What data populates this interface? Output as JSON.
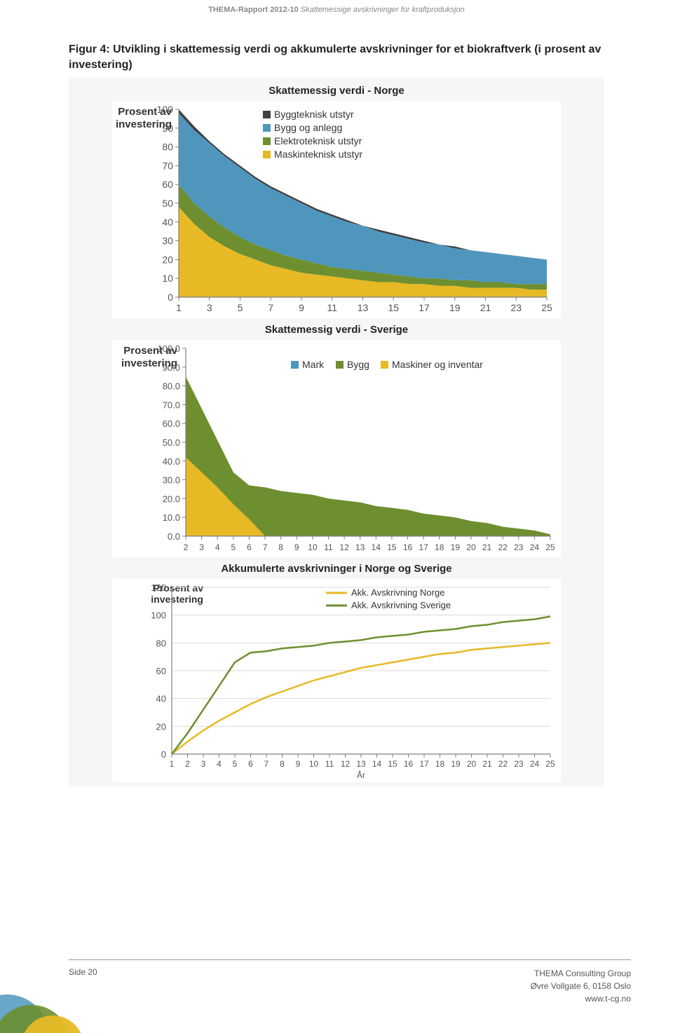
{
  "header": {
    "prefix": "THEMA-Rapport 2012-10",
    "suffix": "Skattemessige avskrivninger for kraftproduksjon"
  },
  "figTitle": "Figur 4: Utvikling i skattemessig verdi og akkumulerte avskrivninger for et biokraftverk (i prosent av investering)",
  "chart1": {
    "title": "Skattemessig verdi - Norge",
    "type": "area",
    "ylabel": "Prosent av investering",
    "ylabel_fontsize": 15,
    "ylim": [
      0,
      100
    ],
    "ytick_step": 10,
    "xticks": [
      1,
      3,
      5,
      7,
      9,
      11,
      13,
      15,
      17,
      19,
      21,
      23,
      25
    ],
    "tick_fontsize": 14,
    "background_color": "#ffffff",
    "axis_color": "#7f7f7f",
    "legend": [
      {
        "label": "Byggteknisk utstyr",
        "color": "#404040"
      },
      {
        "label": "Bygg og anlegg",
        "color": "#4f96bd"
      },
      {
        "label": "Elektroteknisk utstyr",
        "color": "#6d8f2f"
      },
      {
        "label": "Maskinteknisk utstyr",
        "color": "#e7b925"
      }
    ],
    "x": [
      1,
      2,
      3,
      4,
      5,
      6,
      7,
      8,
      9,
      10,
      11,
      12,
      13,
      14,
      15,
      16,
      17,
      18,
      19,
      20,
      21,
      22,
      23,
      24,
      25
    ],
    "stack_top": [
      100,
      91,
      83,
      76,
      70,
      64,
      59,
      55,
      51,
      47,
      44,
      41,
      38,
      36,
      34,
      32,
      30,
      28,
      27,
      25,
      24,
      23,
      22,
      21,
      20
    ],
    "layer_bygg_top": [
      98,
      89,
      82,
      75,
      69,
      63,
      58,
      54,
      50,
      46,
      43,
      40,
      38,
      35,
      33,
      31,
      29,
      28,
      26,
      25,
      24,
      23,
      22,
      21,
      20
    ],
    "layer_elek_top": [
      60,
      50,
      43,
      37,
      32,
      28,
      25,
      22,
      20,
      18,
      16,
      15,
      14,
      13,
      12,
      11,
      10,
      10,
      9,
      9,
      8,
      8,
      7,
      7,
      7
    ],
    "layer_mask_top": [
      48,
      39,
      32,
      27,
      23,
      20,
      17,
      15,
      13,
      12,
      11,
      10,
      9,
      8,
      8,
      7,
      7,
      6,
      6,
      5,
      5,
      5,
      5,
      4,
      4
    ]
  },
  "chart2": {
    "title": "Skattemessig verdi - Sverige",
    "type": "area",
    "ylabel": "Prosent av investering",
    "ylabel_fontsize": 15,
    "ylim": [
      0,
      100
    ],
    "ytick_step": 10,
    "xticks": [
      2,
      3,
      4,
      5,
      6,
      7,
      8,
      9,
      10,
      11,
      12,
      13,
      14,
      15,
      16,
      17,
      18,
      19,
      20,
      21,
      22,
      23,
      24,
      25
    ],
    "tick_fontsize": 13,
    "background_color": "#ffffff",
    "axis_color": "#7f7f7f",
    "legend": [
      {
        "label": "Mark",
        "color": "#4f96bd"
      },
      {
        "label": "Bygg",
        "color": "#6d8f2f"
      },
      {
        "label": "Maskiner og inventar",
        "color": "#e7b925"
      }
    ],
    "x": [
      2,
      3,
      4,
      5,
      6,
      7,
      8,
      9,
      10,
      11,
      12,
      13,
      14,
      15,
      16,
      17,
      18,
      19,
      20,
      21,
      22,
      23,
      24,
      25
    ],
    "stack_top": [
      85,
      68,
      51,
      34,
      27,
      26,
      24,
      23,
      22,
      20,
      19,
      18,
      16,
      15,
      14,
      12,
      11,
      10,
      8,
      7,
      5,
      4,
      3,
      1
    ],
    "layer_bygg_top": [
      85,
      68,
      51,
      34,
      27,
      26,
      24,
      23,
      22,
      20,
      19,
      18,
      16,
      15,
      14,
      12,
      11,
      10,
      8,
      7,
      5,
      4,
      3,
      1
    ],
    "layer_mask_top": [
      42,
      34,
      26,
      17,
      9,
      0,
      0,
      0,
      0,
      0,
      0,
      0,
      0,
      0,
      0,
      0,
      0,
      0,
      0,
      0,
      0,
      0,
      0,
      0
    ]
  },
  "chart3": {
    "title": "Akkumulerte avskrivninger i Norge og Sverige",
    "type": "line",
    "ylabel": "Prosent av investering",
    "ylabel_fontsize": 14,
    "xlabel": "År",
    "ylim": [
      0,
      120
    ],
    "ytick_step": 20,
    "xticks": [
      1,
      2,
      3,
      4,
      5,
      6,
      7,
      8,
      9,
      10,
      11,
      12,
      13,
      14,
      15,
      16,
      17,
      18,
      19,
      20,
      21,
      22,
      23,
      24,
      25
    ],
    "tick_fontsize": 13,
    "background_color": "#ffffff",
    "grid_color": "#d9d9d9",
    "axis_color": "#7f7f7f",
    "line_width": 2.5,
    "series": [
      {
        "label": "Akk. Avskrivning Norge",
        "color": "#e7b925",
        "y": [
          0,
          9,
          17,
          24,
          30,
          36,
          41,
          45,
          49,
          53,
          56,
          59,
          62,
          64,
          66,
          68,
          70,
          72,
          73,
          75,
          76,
          77,
          78,
          79,
          80
        ]
      },
      {
        "label": "Akk. Avskrivning Sverige",
        "color": "#6d8f2f",
        "y": [
          0,
          15,
          32,
          49,
          66,
          73,
          74,
          76,
          77,
          78,
          80,
          81,
          82,
          84,
          85,
          86,
          88,
          89,
          90,
          92,
          93,
          95,
          96,
          97,
          99
        ]
      }
    ],
    "x": [
      1,
      2,
      3,
      4,
      5,
      6,
      7,
      8,
      9,
      10,
      11,
      12,
      13,
      14,
      15,
      16,
      17,
      18,
      19,
      20,
      21,
      22,
      23,
      24,
      25
    ]
  },
  "footer": {
    "left": "Side 20",
    "rightLines": [
      "THEMA Consulting Group",
      "Øvre Vollgate 6, 0158 Oslo",
      "www.t-cg.no"
    ]
  },
  "logo_colors": [
    "#4f96bd",
    "#6d8f2f",
    "#e7b925"
  ]
}
